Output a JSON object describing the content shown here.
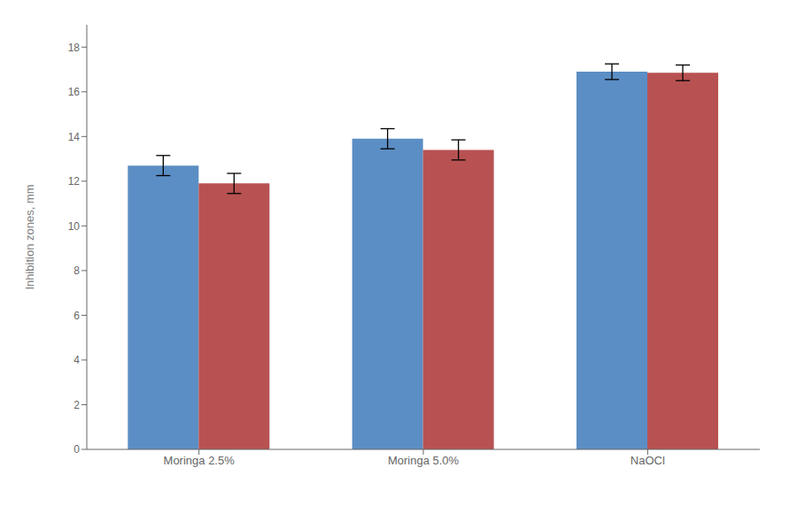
{
  "chart_data": {
    "type": "bar",
    "categories": [
      "Moringa 2.5%",
      "Moringa 5.0%",
      "NaOCl"
    ],
    "series": [
      {
        "color": "#5B8EC4",
        "values": [
          12.7,
          13.9,
          16.9
        ],
        "errors": [
          0.45,
          0.45,
          0.35
        ]
      },
      {
        "color": "#B85252",
        "values": [
          11.9,
          13.4,
          16.85
        ],
        "errors": [
          0.45,
          0.45,
          0.35
        ]
      }
    ],
    "ylabel": "Inhibition zones, mm",
    "ylim": [
      0,
      19
    ],
    "yticks": [
      0,
      2,
      4,
      6,
      8,
      10,
      12,
      14,
      16,
      18
    ],
    "grid": false
  }
}
